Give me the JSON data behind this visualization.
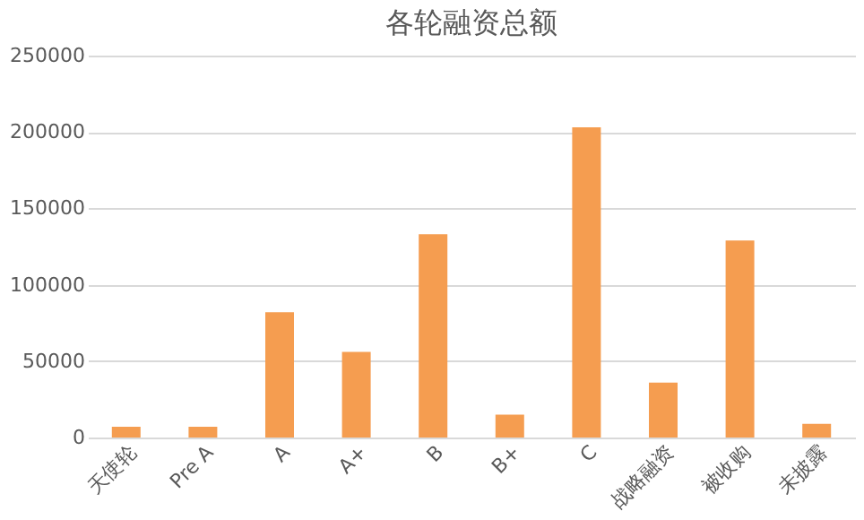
{
  "chart_data": {
    "type": "bar",
    "title": "各轮融资总额",
    "categories": [
      "天使轮",
      "Pre A",
      "A",
      "A+",
      "B",
      "B+",
      "C",
      "战略融资",
      "被收购",
      "未披露"
    ],
    "values": [
      7000,
      7000,
      82000,
      56000,
      133000,
      15000,
      203000,
      36000,
      129000,
      9000
    ],
    "color": "#f59d50",
    "ylim": [
      0,
      250000
    ],
    "yticks": [
      0,
      50000,
      100000,
      150000,
      200000,
      250000
    ],
    "grid": "y"
  }
}
